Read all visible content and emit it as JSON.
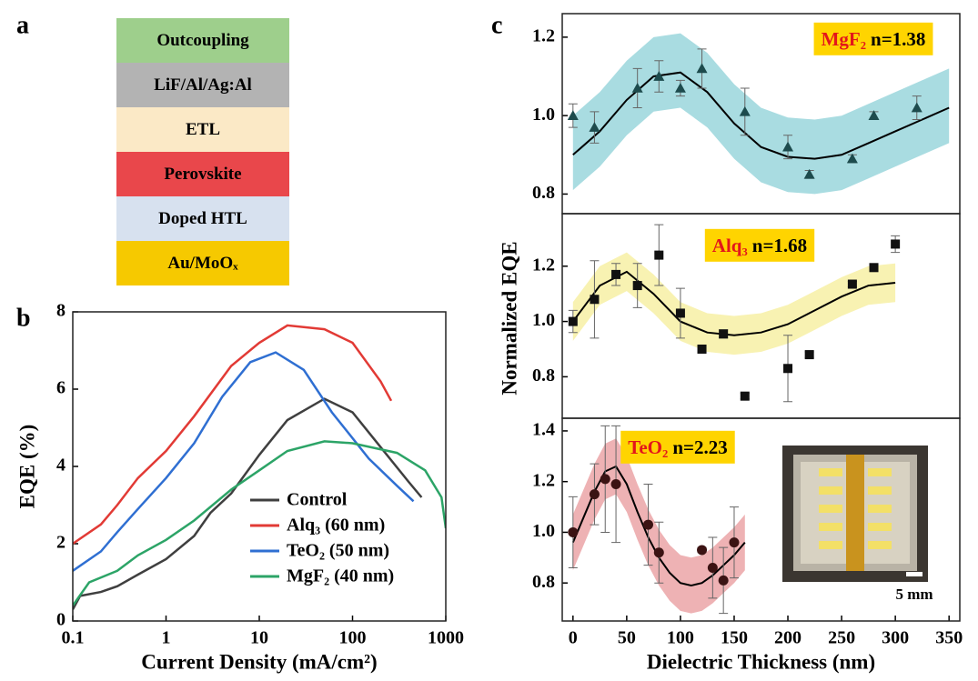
{
  "panel_labels": [
    "a",
    "b",
    "c"
  ],
  "layer_stack": {
    "layers": [
      {
        "name": "Outcoupling",
        "color": "#9ecf8c"
      },
      {
        "name": "LiF/Al/Ag:Al",
        "color": "#b3b3b3"
      },
      {
        "name": "ETL",
        "color": "#fbe9c6"
      },
      {
        "name": "Perovskite",
        "color": "#e9474b"
      },
      {
        "name": "Doped HTL",
        "color": "#d7e1ef"
      },
      {
        "name": "Au/MoOₓ",
        "color": "#f6c900"
      }
    ]
  },
  "inset": {
    "scale_label": "5 mm"
  },
  "chart_data": [
    {
      "type": "line",
      "xscale": "log",
      "xlabel": "Current Density (mA/cm²)",
      "ylabel": "EQE (%)",
      "xlim": [
        0.1,
        1000
      ],
      "xticks": [
        0.1,
        1,
        10,
        100,
        1000
      ],
      "ylim": [
        0,
        8
      ],
      "yticks": [
        0,
        2,
        4,
        6,
        8
      ],
      "legend": "lower right",
      "series": [
        {
          "name": "Control",
          "color": "#3f3f3f",
          "x": [
            0.1,
            0.12,
            0.2,
            0.3,
            0.5,
            1,
            2,
            3,
            5,
            10,
            20,
            50,
            100,
            200,
            400,
            550
          ],
          "values": [
            0.3,
            0.65,
            0.75,
            0.9,
            1.2,
            1.6,
            2.2,
            2.8,
            3.3,
            4.3,
            5.2,
            5.75,
            5.4,
            4.5,
            3.6,
            3.2
          ]
        },
        {
          "name": "Alq₃ (60 nm)",
          "color": "#e23a35",
          "x": [
            0.1,
            0.2,
            0.3,
            0.5,
            1,
            2,
            5,
            10,
            20,
            50,
            100,
            200,
            260
          ],
          "values": [
            2.0,
            2.5,
            3.0,
            3.7,
            4.4,
            5.3,
            6.6,
            7.2,
            7.65,
            7.55,
            7.2,
            6.2,
            5.7
          ]
        },
        {
          "name": "TeO₂ (50 nm)",
          "color": "#2f6fd2",
          "x": [
            0.1,
            0.2,
            0.3,
            0.5,
            1,
            2,
            4,
            8,
            15,
            30,
            60,
            150,
            300,
            450
          ],
          "values": [
            1.3,
            1.8,
            2.3,
            2.9,
            3.7,
            4.6,
            5.8,
            6.7,
            6.95,
            6.5,
            5.4,
            4.2,
            3.5,
            3.1
          ]
        },
        {
          "name": "MgF₂ (40 nm)",
          "color": "#2ca467",
          "x": [
            0.1,
            0.15,
            0.3,
            0.5,
            1,
            2,
            5,
            10,
            20,
            50,
            100,
            300,
            600,
            900,
            1000
          ],
          "values": [
            0.4,
            1.0,
            1.3,
            1.7,
            2.1,
            2.6,
            3.4,
            3.9,
            4.4,
            4.65,
            4.6,
            4.35,
            3.9,
            3.2,
            2.4
          ]
        }
      ]
    },
    {
      "type": "scatter",
      "xlim": [
        -10,
        360
      ],
      "ylim": [
        0.75,
        1.26
      ],
      "yticks": [
        0.8,
        {
          "value": 1,
          "label": "1.0"
        },
        1.2
      ],
      "annotation": {
        "material": "MgF₂",
        "text": "n=1.38",
        "color": "#ffd400"
      },
      "points": {
        "marker": "triangle",
        "color": "#1d4b4d",
        "x": [
          0,
          20,
          60,
          80,
          100,
          120,
          160,
          200,
          220,
          260,
          280,
          320
        ],
        "values": [
          1.0,
          0.97,
          1.07,
          1.1,
          1.07,
          1.12,
          1.01,
          0.92,
          0.85,
          0.89,
          1.0,
          1.02
        ],
        "errors": [
          0.03,
          0.04,
          0.05,
          0.04,
          0.02,
          0.05,
          0.06,
          0.03,
          0.01,
          0.01,
          0.01,
          0.03
        ]
      },
      "fit": {
        "color": "#000000",
        "band_color": "#a9dce1",
        "x": [
          0,
          25,
          50,
          75,
          100,
          125,
          150,
          175,
          200,
          225,
          250,
          275,
          300,
          325,
          350
        ],
        "values": [
          0.9,
          0.96,
          1.04,
          1.1,
          1.11,
          1.06,
          0.98,
          0.92,
          0.895,
          0.89,
          0.9,
          0.93,
          0.96,
          0.99,
          1.02
        ],
        "upper": [
          1.0,
          1.06,
          1.14,
          1.2,
          1.21,
          1.16,
          1.08,
          1.02,
          0.995,
          0.99,
          1.0,
          1.03,
          1.06,
          1.09,
          1.12
        ],
        "lower": [
          0.81,
          0.87,
          0.95,
          1.01,
          1.02,
          0.97,
          0.89,
          0.83,
          0.805,
          0.8,
          0.81,
          0.84,
          0.87,
          0.9,
          0.93
        ]
      }
    },
    {
      "type": "scatter",
      "ylabel": "Normalized EQE",
      "xlim": [
        -10,
        360
      ],
      "ylim": [
        0.65,
        1.39
      ],
      "yticks": [
        0.8,
        {
          "value": 1,
          "label": "1.0"
        },
        1.2
      ],
      "annotation": {
        "material": "Alq₃",
        "text": "n=1.68",
        "color": "#ffd400"
      },
      "points": {
        "marker": "square",
        "color": "#111111",
        "x": [
          0,
          20,
          40,
          60,
          80,
          100,
          120,
          140,
          160,
          200,
          220,
          260,
          280,
          300
        ],
        "values": [
          1.0,
          1.08,
          1.17,
          1.13,
          1.24,
          1.03,
          0.9,
          0.955,
          0.73,
          0.83,
          0.88,
          1.135,
          1.195,
          1.28
        ],
        "errors": [
          0.04,
          0.14,
          0.04,
          0.08,
          0.11,
          0.09,
          0.01,
          0.015,
          0.01,
          0.12,
          0.01,
          0.01,
          0.01,
          0.03
        ]
      },
      "fit": {
        "color": "#000000",
        "band_color": "#f8f2b2",
        "x": [
          0,
          25,
          50,
          75,
          100,
          125,
          150,
          175,
          200,
          225,
          250,
          275,
          300
        ],
        "values": [
          1.0,
          1.13,
          1.18,
          1.1,
          1.0,
          0.96,
          0.95,
          0.96,
          0.99,
          1.04,
          1.09,
          1.13,
          1.14
        ],
        "upper": [
          1.07,
          1.2,
          1.25,
          1.17,
          1.07,
          1.03,
          1.02,
          1.03,
          1.06,
          1.11,
          1.16,
          1.2,
          1.21
        ],
        "lower": [
          0.93,
          1.06,
          1.11,
          1.03,
          0.93,
          0.89,
          0.88,
          0.89,
          0.92,
          0.97,
          1.02,
          1.06,
          1.07
        ]
      }
    },
    {
      "type": "scatter",
      "xlabel": "Dielectric Thickness (nm)",
      "xlim": [
        -10,
        360
      ],
      "xticks": [
        0,
        50,
        100,
        150,
        200,
        250,
        300,
        350
      ],
      "ylim": [
        0.65,
        1.45
      ],
      "yticks": [
        0.8,
        {
          "value": 1,
          "label": "1.0"
        },
        1.2,
        1.4
      ],
      "annotation": {
        "material": "TeO₂",
        "text": "n=2.23",
        "color": "#ffd400"
      },
      "points": {
        "marker": "circle",
        "color": "#3b1313",
        "x": [
          0,
          20,
          30,
          40,
          70,
          80,
          120,
          130,
          140,
          150
        ],
        "values": [
          1.0,
          1.15,
          1.21,
          1.19,
          1.03,
          0.92,
          0.93,
          0.86,
          0.81,
          0.96
        ],
        "errors": [
          0.14,
          0.12,
          0.21,
          0.23,
          0.16,
          0.12,
          0.01,
          0.12,
          0.13,
          0.14
        ]
      },
      "fit": {
        "color": "#000000",
        "band_color": "#eeb2b4",
        "x": [
          0,
          10,
          20,
          30,
          40,
          50,
          60,
          70,
          80,
          90,
          100,
          110,
          120,
          130,
          140,
          150,
          160
        ],
        "values": [
          0.96,
          1.06,
          1.16,
          1.24,
          1.26,
          1.19,
          1.08,
          0.98,
          0.9,
          0.84,
          0.8,
          0.79,
          0.8,
          0.83,
          0.87,
          0.91,
          0.96
        ],
        "upper": [
          1.07,
          1.17,
          1.27,
          1.35,
          1.37,
          1.3,
          1.19,
          1.09,
          1.01,
          0.95,
          0.91,
          0.9,
          0.91,
          0.94,
          0.98,
          1.02,
          1.07
        ],
        "lower": [
          0.85,
          0.95,
          1.05,
          1.13,
          1.15,
          1.08,
          0.97,
          0.87,
          0.79,
          0.73,
          0.69,
          0.68,
          0.69,
          0.72,
          0.76,
          0.8,
          0.85
        ]
      }
    }
  ]
}
